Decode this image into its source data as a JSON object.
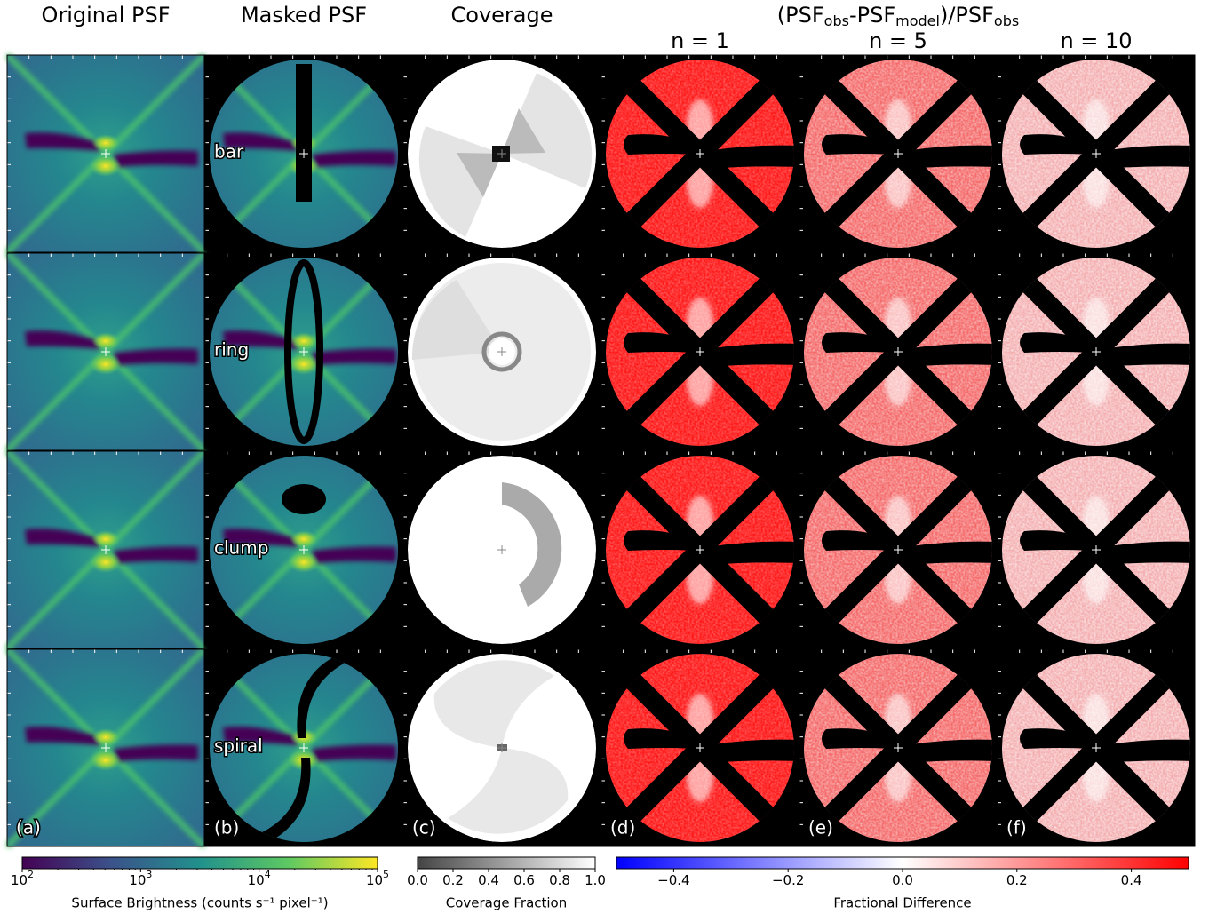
{
  "columns": [
    "Original PSF",
    "Masked PSF",
    "Coverage"
  ],
  "residual_title": [
    "(PSF",
    "obs",
    "-PSF",
    "model",
    ")/PSF",
    "obs"
  ],
  "residual_columns": [
    "n = 1",
    "n = 5",
    "n = 10"
  ],
  "row_labels": [
    "bar",
    "ring",
    "clump",
    "spiral"
  ],
  "panel_letters": [
    "(a)",
    "(b)",
    "(c)",
    "(d)",
    "(e)",
    "(f)"
  ],
  "colorbars": [
    {
      "label": "Surface Brightness (counts s⁻¹ pixel⁻¹)",
      "log": true,
      "lim": [
        100,
        100000
      ],
      "colors": [
        "#440154",
        "#3b528b",
        "#21918c",
        "#5ec962",
        "#fde725"
      ],
      "ticks": [
        {
          "value": 100,
          "label": "10",
          "sup": "2"
        },
        {
          "value": 1000,
          "label": "10",
          "sup": "3"
        },
        {
          "value": 10000,
          "label": "10",
          "sup": "4"
        },
        {
          "value": 100000,
          "label": "10",
          "sup": "5"
        }
      ]
    },
    {
      "label": "Coverage Fraction",
      "log": false,
      "lim": [
        0,
        1
      ],
      "colors": [
        "#444444",
        "#ffffff"
      ],
      "ticks": [
        {
          "value": 0,
          "label": "0.0"
        },
        0.2,
        0.4,
        0.6,
        0.8,
        {
          "value": 1,
          "label": "1.0"
        }
      ]
    },
    {
      "label": "Fractional Difference",
      "log": false,
      "lim": [
        -0.5,
        0.5
      ],
      "colors": [
        "#0000ff",
        "#ffffff",
        "#ff0000"
      ],
      "ticks": [
        {
          "value": -0.4,
          "label": "−0.4"
        },
        {
          "value": -0.2,
          "label": "−0.2"
        },
        {
          "value": 0,
          "label": "0.0"
        },
        0.2,
        0.4
      ]
    }
  ]
}
